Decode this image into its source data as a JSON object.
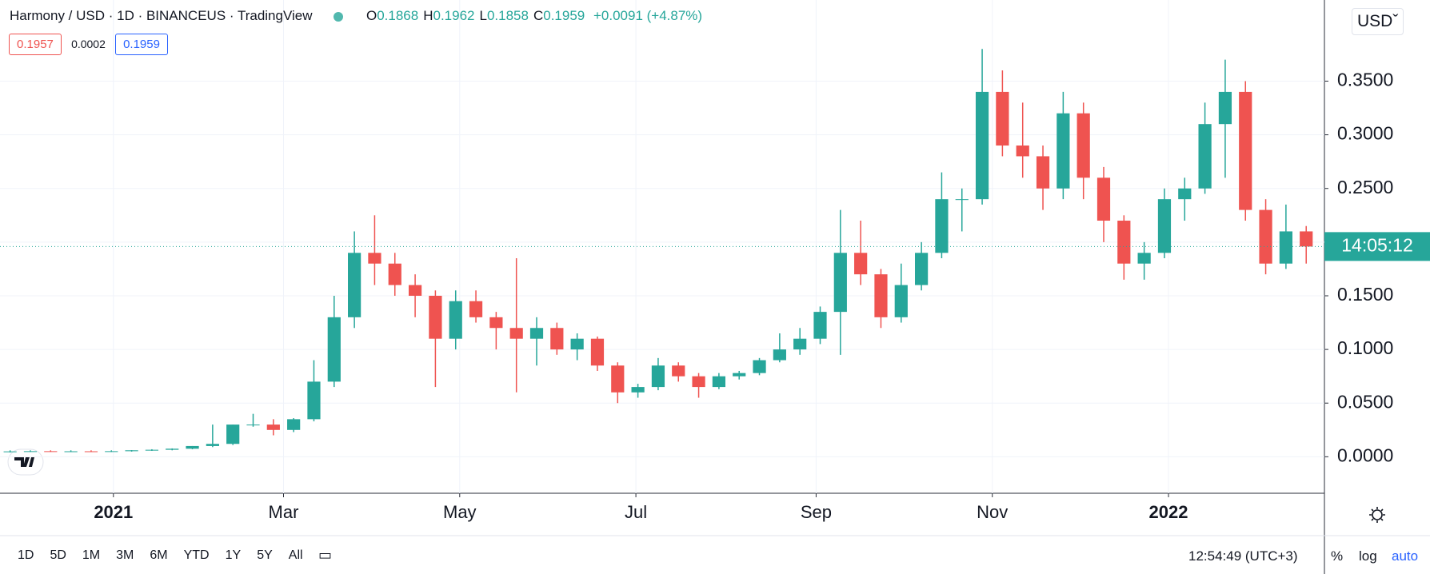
{
  "header": {
    "symbol": "Harmony / USD · 1D · BINANCEUS · TradingView",
    "ohlc": [
      {
        "label": "O",
        "value": "0.1868"
      },
      {
        "label": "H",
        "value": "0.1962"
      },
      {
        "label": "L",
        "value": "0.1858"
      },
      {
        "label": "C",
        "value": "0.1959"
      }
    ],
    "change": "+0.0091 (+4.87%)",
    "bid": "0.1957",
    "spread": "0.0002",
    "ask": "0.1959"
  },
  "currency_button": "USD",
  "toolbar": {
    "ranges": [
      "1D",
      "5D",
      "1M",
      "3M",
      "6M",
      "YTD",
      "1Y",
      "5Y",
      "All"
    ],
    "clock": "12:54:49 (UTC+3)",
    "percent": "%",
    "log": "log",
    "auto": "auto"
  },
  "chart_data": {
    "type": "candlestick",
    "up_color": "#26a69a",
    "down_color": "#ef5350",
    "countdown": "14:05:12",
    "last_price_color": "#26a69a",
    "xlim": [
      0,
      65.4
    ],
    "ylim": [
      -0.034,
      0.4256
    ],
    "xticks": [
      {
        "value": 5.6,
        "label": "2021"
      },
      {
        "value": 14,
        "label": "Mar"
      },
      {
        "value": 22.7,
        "label": "May"
      },
      {
        "value": 31.4,
        "label": "Jul"
      },
      {
        "value": 40.3,
        "label": "Sep"
      },
      {
        "value": 49,
        "label": "Nov"
      },
      {
        "value": 57.7,
        "label": "2022"
      }
    ],
    "yticks": [
      {
        "value": 0,
        "label": "0.0000"
      },
      {
        "value": 0.05,
        "label": "0.0500"
      },
      {
        "value": 0.1,
        "label": "0.1000"
      },
      {
        "value": 0.15,
        "label": "0.1500"
      },
      {
        "value": 0.2,
        "label": "0.2000"
      },
      {
        "value": 0.25,
        "label": "0.2500"
      },
      {
        "value": 0.3,
        "label": "0.3000"
      },
      {
        "value": 0.35,
        "label": "0.3500"
      }
    ],
    "grid": true,
    "open": [
      0.005,
      0.005,
      0.0052,
      0.005,
      0.0051,
      0.005,
      0.0052,
      0.006,
      0.0065,
      0.0075,
      0.01,
      0.012,
      0.03,
      0.03,
      0.025,
      0.035,
      0.07,
      0.13,
      0.19,
      0.18,
      0.16,
      0.15,
      0.11,
      0.145,
      0.13,
      0.12,
      0.11,
      0.12,
      0.1,
      0.11,
      0.085,
      0.06,
      0.065,
      0.085,
      0.075,
      0.065,
      0.075,
      0.078,
      0.09,
      0.1,
      0.11,
      0.135,
      0.19,
      0.17,
      0.13,
      0.16,
      0.19,
      0.24,
      0.24,
      0.34,
      0.29,
      0.28,
      0.25,
      0.32,
      0.26,
      0.22,
      0.18,
      0.19,
      0.24,
      0.25,
      0.31,
      0.34,
      0.23,
      0.18,
      0.21
    ],
    "high": [
      0.006,
      0.006,
      0.006,
      0.006,
      0.006,
      0.006,
      0.0062,
      0.007,
      0.0078,
      0.01,
      0.03,
      0.03,
      0.04,
      0.035,
      0.036,
      0.09,
      0.15,
      0.21,
      0.225,
      0.19,
      0.17,
      0.155,
      0.155,
      0.155,
      0.135,
      0.185,
      0.13,
      0.125,
      0.115,
      0.112,
      0.088,
      0.068,
      0.092,
      0.088,
      0.078,
      0.078,
      0.08,
      0.092,
      0.115,
      0.12,
      0.14,
      0.23,
      0.22,
      0.175,
      0.18,
      0.2,
      0.265,
      0.25,
      0.38,
      0.36,
      0.33,
      0.29,
      0.34,
      0.33,
      0.27,
      0.225,
      0.2,
      0.25,
      0.26,
      0.33,
      0.37,
      0.35,
      0.24,
      0.235,
      0.215
    ],
    "low": [
      0.004,
      0.0045,
      0.0046,
      0.0045,
      0.0046,
      0.0045,
      0.0048,
      0.0055,
      0.006,
      0.007,
      0.009,
      0.011,
      0.028,
      0.02,
      0.023,
      0.033,
      0.065,
      0.12,
      0.16,
      0.15,
      0.13,
      0.065,
      0.1,
      0.125,
      0.1,
      0.06,
      0.085,
      0.095,
      0.09,
      0.08,
      0.05,
      0.055,
      0.062,
      0.07,
      0.055,
      0.063,
      0.072,
      0.076,
      0.088,
      0.095,
      0.105,
      0.095,
      0.16,
      0.12,
      0.125,
      0.155,
      0.185,
      0.21,
      0.235,
      0.28,
      0.26,
      0.23,
      0.24,
      0.24,
      0.2,
      0.165,
      0.165,
      0.185,
      0.22,
      0.245,
      0.26,
      0.22,
      0.17,
      0.175,
      0.18
    ],
    "close": [
      0.005,
      0.0052,
      0.005,
      0.0051,
      0.005,
      0.0052,
      0.006,
      0.0065,
      0.0075,
      0.01,
      0.012,
      0.03,
      0.03,
      0.025,
      0.035,
      0.07,
      0.13,
      0.19,
      0.18,
      0.16,
      0.15,
      0.11,
      0.145,
      0.13,
      0.12,
      0.11,
      0.12,
      0.1,
      0.11,
      0.085,
      0.06,
      0.065,
      0.085,
      0.075,
      0.065,
      0.075,
      0.078,
      0.09,
      0.1,
      0.11,
      0.135,
      0.19,
      0.17,
      0.13,
      0.16,
      0.19,
      0.24,
      0.24,
      0.34,
      0.29,
      0.28,
      0.25,
      0.32,
      0.26,
      0.22,
      0.18,
      0.19,
      0.24,
      0.25,
      0.31,
      0.34,
      0.23,
      0.18,
      0.21,
      0.1959
    ]
  }
}
